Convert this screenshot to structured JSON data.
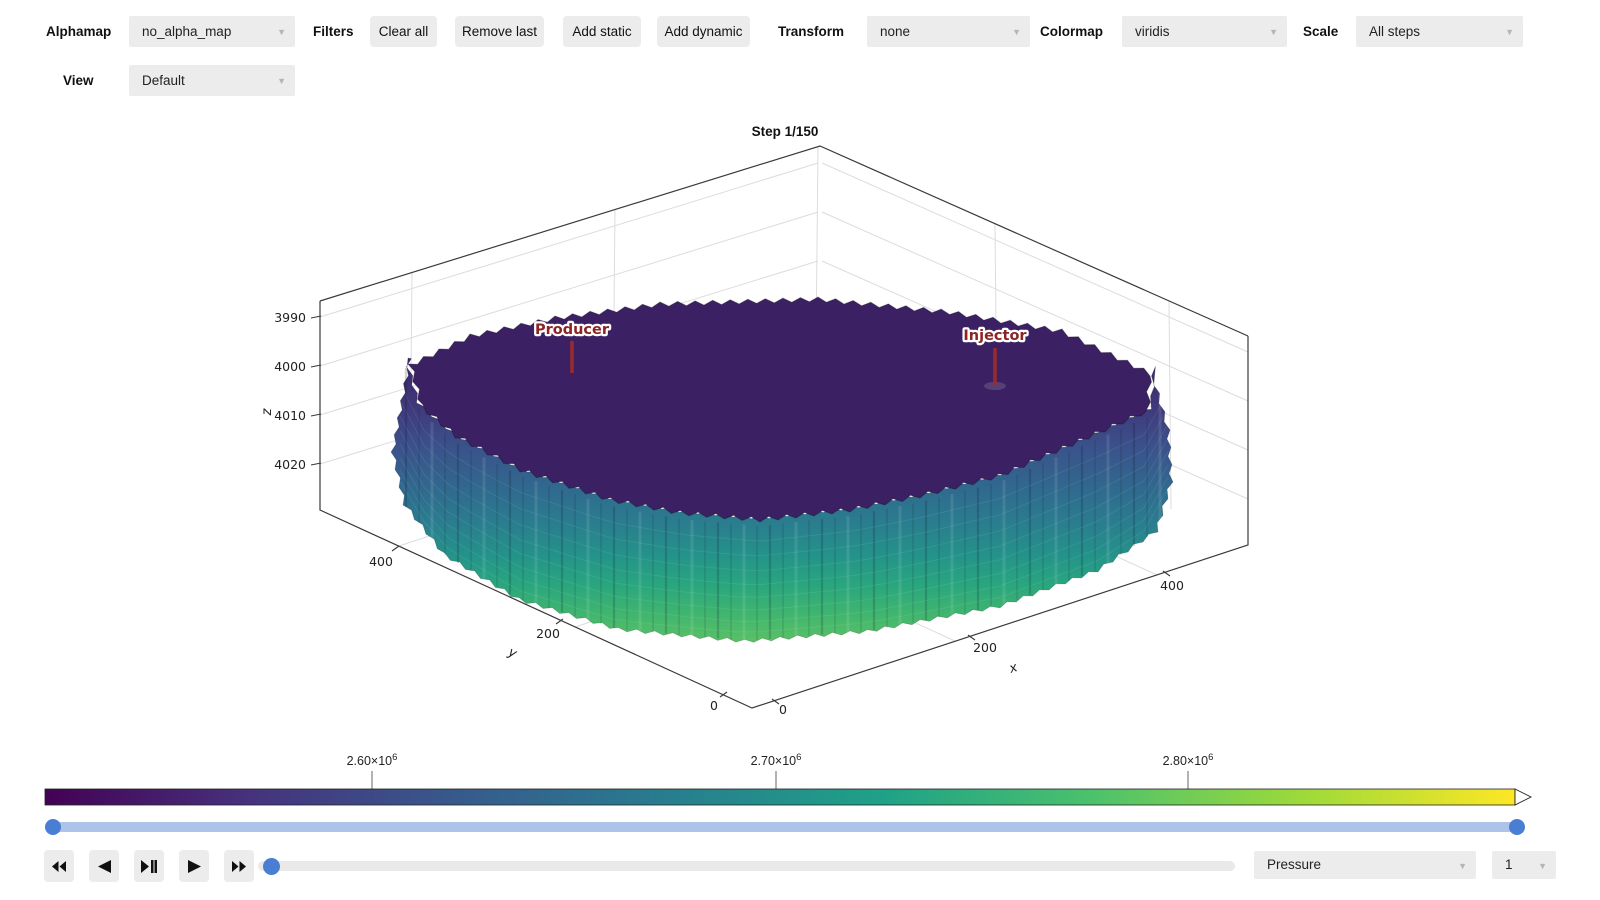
{
  "toolbar": {
    "alphamap": {
      "label": "Alphamap",
      "value": "no_alpha_map"
    },
    "filters": {
      "label": "Filters",
      "buttons": [
        "Clear all",
        "Remove last",
        "Add static",
        "Add dynamic"
      ]
    },
    "transform": {
      "label": "Transform",
      "value": "none"
    },
    "colormap": {
      "label": "Colormap",
      "value": "viridis"
    },
    "scale": {
      "label": "Scale",
      "value": "All steps"
    },
    "view": {
      "label": "View",
      "value": "Default"
    }
  },
  "plot": {
    "title": "Step 1/150",
    "wells": {
      "producer": "Producer",
      "injector": "Injector"
    },
    "x_label": "x",
    "y_label": "y",
    "z_label": "z",
    "x_ticks": [
      "0",
      "200",
      "400"
    ],
    "y_ticks": [
      "400",
      "200",
      "0"
    ],
    "z_ticks": [
      "3990",
      "4000",
      "4010",
      "4020"
    ]
  },
  "colorbar": {
    "tick1": {
      "base": "2.60×10",
      "exp": "6"
    },
    "tick2": {
      "base": "2.70×10",
      "exp": "6"
    },
    "tick3": {
      "base": "2.80×10",
      "exp": "6"
    }
  },
  "playback": {
    "field": "Pressure",
    "step": "1"
  },
  "colors": {
    "accent_blue": "#4a7ed2",
    "well_red": "#9b2b2b",
    "viridis_start": "#440154",
    "viridis_end": "#fde725"
  }
}
